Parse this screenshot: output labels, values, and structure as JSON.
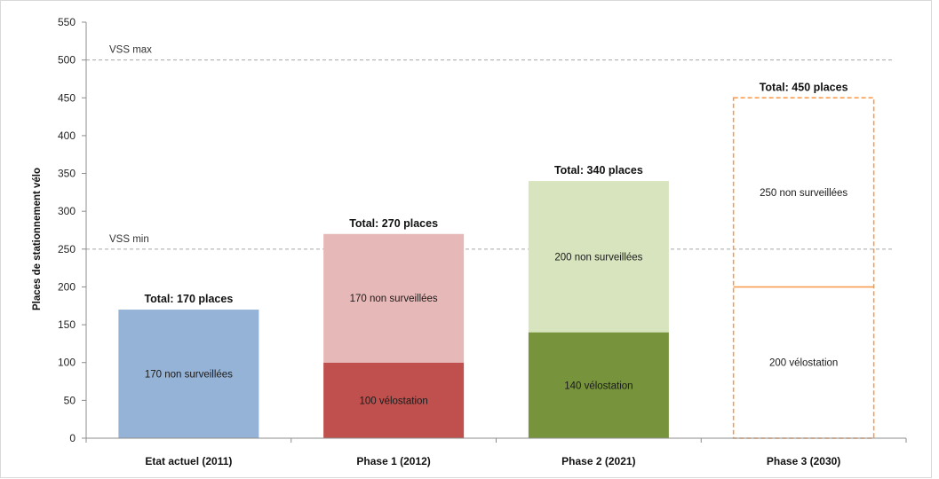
{
  "chart_data": {
    "type": "bar",
    "stacked": true,
    "title": "",
    "xlabel": "",
    "ylabel": "Places de stationnement vélo",
    "ylim": [
      0,
      550
    ],
    "yticks": [
      0,
      50,
      100,
      150,
      200,
      250,
      300,
      350,
      400,
      450,
      500,
      550
    ],
    "grid": false,
    "legend": "none",
    "categories": [
      "Etat actuel (2011)",
      "Phase 1 (2012)",
      "Phase 2 (2021)",
      "Phase 3 (2030)"
    ],
    "bars": [
      {
        "category": "Etat actuel (2011)",
        "total": 170,
        "total_label": "Total: 170 places",
        "style": "solid",
        "segments": [
          {
            "value": 170,
            "label": "170 non surveillées",
            "color": "#95b3d7"
          }
        ]
      },
      {
        "category": "Phase 1 (2012)",
        "total": 270,
        "total_label": "Total: 270 places",
        "style": "solid",
        "segments": [
          {
            "value": 100,
            "label": "100 vélostation",
            "color": "#c0504d"
          },
          {
            "value": 170,
            "label": "170 non surveillées",
            "color": "#e6b9b8"
          }
        ]
      },
      {
        "category": "Phase 2 (2021)",
        "total": 340,
        "total_label": "Total: 340 places",
        "style": "solid",
        "segments": [
          {
            "value": 140,
            "label": "140 vélostation",
            "color": "#77933c"
          },
          {
            "value": 200,
            "label": "200 non surveillées",
            "color": "#d7e4bd"
          }
        ]
      },
      {
        "category": "Phase 3 (2030)",
        "total": 450,
        "total_label": "Total: 450 places",
        "style": "dashed-outline",
        "segments": [
          {
            "value": 200,
            "label": "200 vélostation",
            "color": "#f79646"
          },
          {
            "value": 250,
            "label": "250 non surveillées",
            "color": "#f79646"
          }
        ]
      }
    ],
    "reference_lines": [
      {
        "value": 500,
        "label": "VSS max",
        "color": "#a6a6a6"
      },
      {
        "value": 250,
        "label": "VSS min",
        "color": "#a6a6a6"
      }
    ],
    "colors": {
      "axis": "#8c8c8c",
      "text": "#111111",
      "projection": "#f79646",
      "frame": "#d9d9d9"
    }
  }
}
